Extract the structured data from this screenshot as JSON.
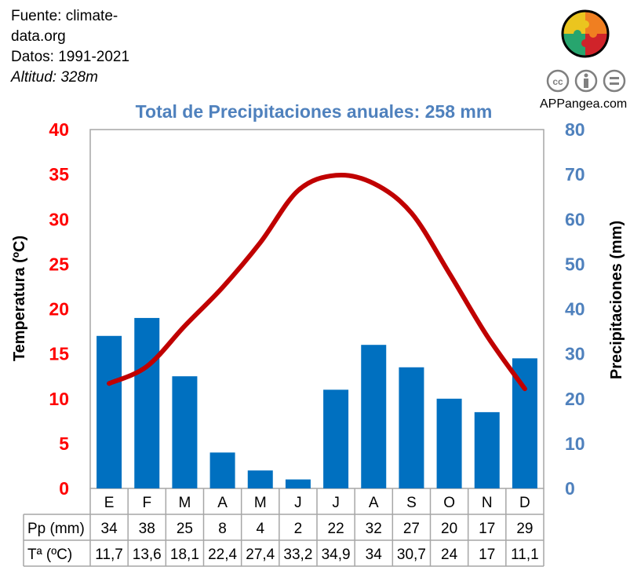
{
  "source": {
    "line1": "Fuente: climate-data.org",
    "line2": "Datos: 1991-2021",
    "line3": "Altitud: 328m"
  },
  "brand": {
    "name": "APPangea.com",
    "logo_icon": "puzzle-globe-icon",
    "license_icons": [
      "cc-icon",
      "by-icon",
      "nd-icon"
    ]
  },
  "colors": {
    "temp": "#C00000",
    "precip": "#0070C0",
    "left_axis": "#FF0000",
    "right_axis": "#4F81BD",
    "grid": "#A6A6A6"
  },
  "chart_data": {
    "type": "bar+line",
    "title": "Total de Precipitaciones anuales: 258 mm",
    "categories": [
      "E",
      "F",
      "M",
      "A",
      "M",
      "J",
      "J",
      "A",
      "S",
      "O",
      "N",
      "D"
    ],
    "series": [
      {
        "name": "Pp (mm)",
        "type": "bar",
        "axis": "right",
        "values": [
          34,
          38,
          25,
          8,
          4,
          2,
          22,
          32,
          27,
          20,
          17,
          29
        ]
      },
      {
        "name": "Tª (ºC)",
        "type": "line",
        "axis": "left",
        "values": [
          11.7,
          13.6,
          18.1,
          22.4,
          27.4,
          33.2,
          34.9,
          34,
          30.7,
          24,
          17,
          11.1
        ]
      }
    ],
    "table_values": {
      "pp": [
        "34",
        "38",
        "25",
        "8",
        "4",
        "2",
        "22",
        "32",
        "27",
        "20",
        "17",
        "29"
      ],
      "t": [
        "11,7",
        "13,6",
        "18,1",
        "22,4",
        "27,4",
        "33,2",
        "34,9",
        "34",
        "30,7",
        "24",
        "17",
        "11,1"
      ]
    },
    "ylabel_left": "Temperatura (ºC)",
    "ylabel_right": "Precipitaciones (mm)",
    "ylim_left": [
      0,
      40
    ],
    "ylim_right": [
      0,
      80
    ],
    "yticks_left": [
      "0",
      "5",
      "10",
      "15",
      "20",
      "25",
      "30",
      "35",
      "40"
    ],
    "yticks_right": [
      "0",
      "10",
      "20",
      "30",
      "40",
      "50",
      "60",
      "70",
      "80"
    ],
    "grid": false
  }
}
